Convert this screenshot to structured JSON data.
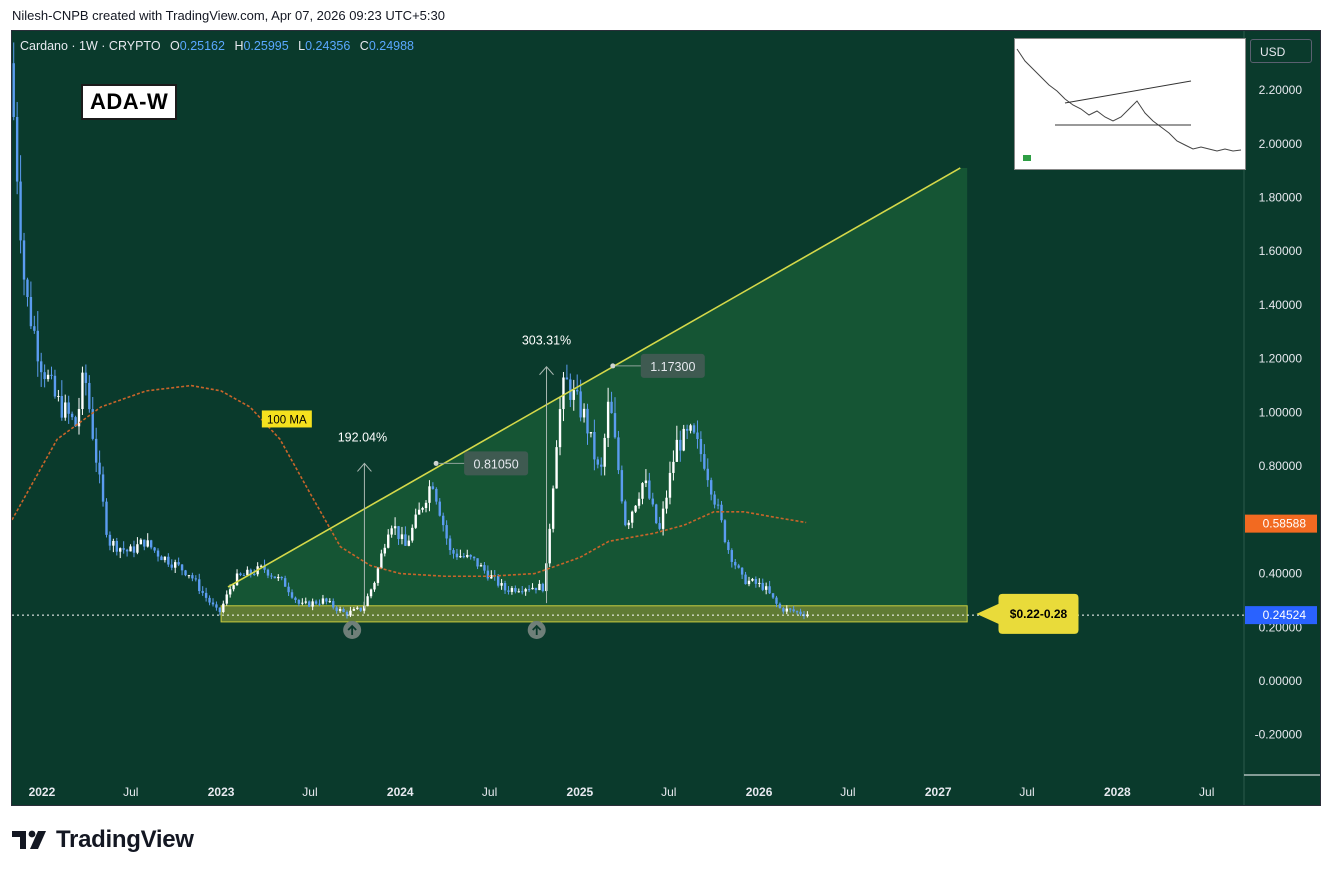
{
  "caption": "Nilesh-CNPB created with TradingView.com, Apr 07, 2026 09:23 UTC+5:30",
  "legend": {
    "symbol": "Cardano · 1W · CRYPTO",
    "o_label": "O",
    "o": "0.25162",
    "h_label": "H",
    "h": "0.25995",
    "l_label": "L",
    "l": "0.24356",
    "c_label": "C",
    "c": "0.24988"
  },
  "ticker_label": "ADA-W",
  "currency_button": "USD",
  "logo_text": "TradingView",
  "colors": {
    "background": "#0a3a2c",
    "candle_up": "#ffffff",
    "candle_down": "#5b9cf0",
    "trendline": "#d4d84a",
    "ma_line": "#c8652a",
    "zone_fill": "#c9cc3f",
    "projection_fill": "#1f6b3c",
    "ma_badge": "#f26a21",
    "price_badge": "#2962ff"
  },
  "chart_data": {
    "type": "candlestick",
    "interval": "1W",
    "y_axis": {
      "ticks": [
        "2.20000",
        "2.00000",
        "1.80000",
        "1.60000",
        "1.40000",
        "1.20000",
        "1.00000",
        "0.80000",
        "0.60000",
        "0.40000",
        "0.20000",
        "0.00000",
        "-0.20000"
      ],
      "range": [
        -0.35,
        2.42
      ]
    },
    "x_axis": {
      "ticks": [
        {
          "label": "2022",
          "date": "2022-01-01"
        },
        {
          "label": "Jul",
          "date": "2022-07-01"
        },
        {
          "label": "2023",
          "date": "2023-01-01"
        },
        {
          "label": "Jul",
          "date": "2023-07-01"
        },
        {
          "label": "2024",
          "date": "2024-01-01"
        },
        {
          "label": "Jul",
          "date": "2024-07-01"
        },
        {
          "label": "2025",
          "date": "2025-01-01"
        },
        {
          "label": "Jul",
          "date": "2025-07-01"
        },
        {
          "label": "2026",
          "date": "2026-01-01"
        },
        {
          "label": "Jul",
          "date": "2026-07-01"
        },
        {
          "label": "2027",
          "date": "2027-01-01"
        },
        {
          "label": "Jul",
          "date": "2027-07-01"
        },
        {
          "label": "2028",
          "date": "2028-01-01"
        },
        {
          "label": "Jul",
          "date": "2028-07-01"
        }
      ],
      "range": [
        "2021-11-01",
        "2028-09-15"
      ]
    },
    "price_path": [
      [
        "2021-11-01",
        2.3
      ],
      [
        "2021-12-01",
        1.45
      ],
      [
        "2022-01-01",
        1.2
      ],
      [
        "2022-02-01",
        1.05
      ],
      [
        "2022-03-15",
        0.95
      ],
      [
        "2022-04-01",
        1.15
      ],
      [
        "2022-05-01",
        0.75
      ],
      [
        "2022-05-20",
        0.52
      ],
      [
        "2022-07-01",
        0.48
      ],
      [
        "2022-08-01",
        0.52
      ],
      [
        "2022-09-01",
        0.47
      ],
      [
        "2022-11-01",
        0.4
      ],
      [
        "2022-12-01",
        0.32
      ],
      [
        "2022-12-31",
        0.25
      ],
      [
        "2023-02-01",
        0.38
      ],
      [
        "2023-04-01",
        0.42
      ],
      [
        "2023-05-15",
        0.36
      ],
      [
        "2023-06-15",
        0.28
      ],
      [
        "2023-08-01",
        0.3
      ],
      [
        "2023-09-15",
        0.25
      ],
      [
        "2023-10-20",
        0.27
      ],
      [
        "2023-11-15",
        0.38
      ],
      [
        "2023-12-15",
        0.6
      ],
      [
        "2024-01-15",
        0.5
      ],
      [
        "2024-03-10",
        0.75
      ],
      [
        "2024-04-15",
        0.48
      ],
      [
        "2024-06-01",
        0.45
      ],
      [
        "2024-08-05",
        0.34
      ],
      [
        "2024-09-15",
        0.35
      ],
      [
        "2024-10-25",
        0.35
      ],
      [
        "2024-11-20",
        0.95
      ],
      [
        "2024-12-05",
        1.12
      ],
      [
        "2025-01-15",
        0.98
      ],
      [
        "2025-02-15",
        0.75
      ],
      [
        "2025-03-05",
        1.05
      ],
      [
        "2025-04-08",
        0.58
      ],
      [
        "2025-05-15",
        0.75
      ],
      [
        "2025-06-15",
        0.55
      ],
      [
        "2025-07-20",
        0.88
      ],
      [
        "2025-08-20",
        0.92
      ],
      [
        "2025-09-15",
        0.82
      ],
      [
        "2025-10-15",
        0.62
      ],
      [
        "2025-11-01",
        0.5
      ],
      [
        "2025-12-01",
        0.38
      ],
      [
        "2026-01-15",
        0.35
      ],
      [
        "2026-02-15",
        0.27
      ],
      [
        "2026-03-15",
        0.26
      ],
      [
        "2026-04-07",
        0.25
      ]
    ],
    "moving_average": {
      "label": "100 MA",
      "current": "0.58588",
      "path": [
        [
          "2021-11-01",
          0.6
        ],
        [
          "2022-02-01",
          0.9
        ],
        [
          "2022-05-01",
          1.02
        ],
        [
          "2022-08-01",
          1.08
        ],
        [
          "2022-11-01",
          1.1
        ],
        [
          "2023-01-01",
          1.08
        ],
        [
          "2023-03-01",
          1.02
        ],
        [
          "2023-05-01",
          0.9
        ],
        [
          "2023-07-01",
          0.7
        ],
        [
          "2023-09-01",
          0.5
        ],
        [
          "2023-11-01",
          0.43
        ],
        [
          "2024-01-01",
          0.4
        ],
        [
          "2024-04-01",
          0.39
        ],
        [
          "2024-07-01",
          0.39
        ],
        [
          "2024-10-01",
          0.4
        ],
        [
          "2025-01-01",
          0.46
        ],
        [
          "2025-03-01",
          0.52
        ],
        [
          "2025-06-01",
          0.55
        ],
        [
          "2025-08-01",
          0.58
        ],
        [
          "2025-10-01",
          0.63
        ],
        [
          "2025-12-01",
          0.63
        ],
        [
          "2026-02-01",
          0.61
        ],
        [
          "2026-04-07",
          0.59
        ]
      ]
    },
    "trendline": {
      "start": [
        "2023-01-15",
        0.35
      ],
      "end": [
        "2027-02-15",
        1.91
      ]
    },
    "support_zone": {
      "label": "$0.22-0.28",
      "low": 0.22,
      "high": 0.28,
      "start": "2023-01-01",
      "end": "2027-03-01"
    },
    "measures": [
      {
        "label": "192.04%",
        "date": "2023-10-20",
        "low": 0.27,
        "high": 0.81
      },
      {
        "label": "303.31%",
        "date": "2024-10-25",
        "low": 0.29,
        "high": 1.17
      }
    ],
    "price_callouts": [
      {
        "label": "0.81050",
        "date": "2024-03-10",
        "value": 0.81
      },
      {
        "label": "1.17300",
        "date": "2025-03-05",
        "value": 1.173
      }
    ],
    "markers": [
      {
        "date": "2023-09-25",
        "value": 0.19
      },
      {
        "date": "2024-10-05",
        "value": 0.19
      }
    ],
    "last_price": "0.24524"
  }
}
